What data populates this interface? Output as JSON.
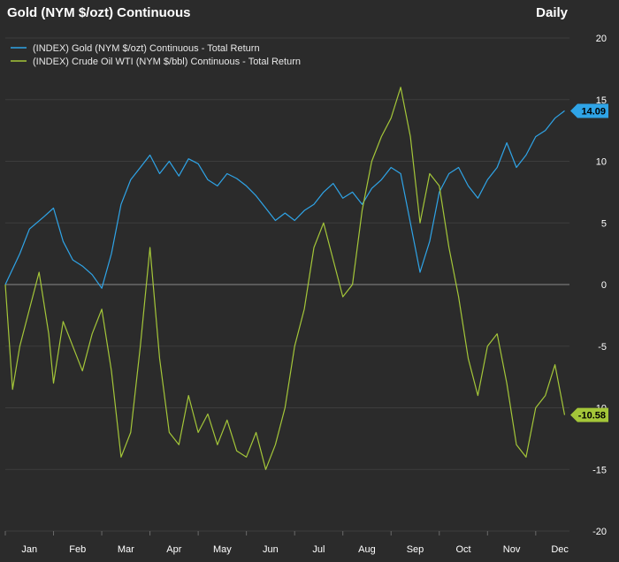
{
  "chart_data": {
    "type": "line",
    "title": "Gold (NYM $/ozt) Continuous",
    "period_label": "Daily",
    "xlabel": "",
    "ylabel": "",
    "ylim": [
      -20,
      20
    ],
    "y_ticks": [
      20,
      15,
      10,
      5,
      0,
      -5,
      -10,
      -15,
      -20
    ],
    "x_tick_labels": [
      "Jan",
      "Feb",
      "Mar",
      "Apr",
      "May",
      "Jun",
      "Jul",
      "Aug",
      "Sep",
      "Oct",
      "Nov",
      "Dec"
    ],
    "grid": "horizontal",
    "legend_position": "top-left",
    "zero_line": true,
    "series": [
      {
        "name": "(INDEX) Gold (NYM $/ozt) Continuous - Total Return",
        "color": "#2fa4e7",
        "last_value": "14.09",
        "x": [
          0.0,
          0.3,
          0.5,
          0.8,
          1.0,
          1.2,
          1.4,
          1.6,
          1.8,
          2.0,
          2.2,
          2.4,
          2.6,
          2.8,
          3.0,
          3.2,
          3.4,
          3.6,
          3.8,
          4.0,
          4.2,
          4.4,
          4.6,
          4.8,
          5.0,
          5.2,
          5.4,
          5.6,
          5.8,
          6.0,
          6.2,
          6.4,
          6.6,
          6.8,
          7.0,
          7.2,
          7.4,
          7.6,
          7.8,
          8.0,
          8.2,
          8.4,
          8.6,
          8.8,
          9.0,
          9.2,
          9.4,
          9.6,
          9.8,
          10.0,
          10.2,
          10.4,
          10.6,
          10.8,
          11.0,
          11.2,
          11.4,
          11.6
        ],
        "values": [
          0.0,
          2.5,
          4.5,
          5.5,
          6.2,
          3.5,
          2.0,
          1.5,
          0.8,
          -0.3,
          2.5,
          6.5,
          8.5,
          9.5,
          10.5,
          9.0,
          10.0,
          8.8,
          10.2,
          9.8,
          8.5,
          8.0,
          9.0,
          8.6,
          8.0,
          7.2,
          6.2,
          5.2,
          5.8,
          5.2,
          6.0,
          6.5,
          7.5,
          8.2,
          7.0,
          7.5,
          6.5,
          7.8,
          8.5,
          9.5,
          9.0,
          5.0,
          1.0,
          3.5,
          7.5,
          9.0,
          9.5,
          8.0,
          7.0,
          8.5,
          9.5,
          11.5,
          9.5,
          10.5,
          12.0,
          12.5,
          13.5,
          14.09
        ]
      },
      {
        "name": "(INDEX) Crude Oil WTI (NYM $/bbl) Continuous - Total Return",
        "color": "#a4c639",
        "last_value": "-10.58",
        "x": [
          0.0,
          0.15,
          0.3,
          0.5,
          0.7,
          0.9,
          1.0,
          1.2,
          1.4,
          1.6,
          1.8,
          2.0,
          2.2,
          2.4,
          2.6,
          2.8,
          3.0,
          3.2,
          3.4,
          3.6,
          3.8,
          4.0,
          4.2,
          4.4,
          4.6,
          4.8,
          5.0,
          5.2,
          5.4,
          5.6,
          5.8,
          6.0,
          6.2,
          6.4,
          6.6,
          6.8,
          7.0,
          7.2,
          7.4,
          7.6,
          7.8,
          8.0,
          8.2,
          8.4,
          8.6,
          8.8,
          9.0,
          9.2,
          9.4,
          9.6,
          9.8,
          10.0,
          10.2,
          10.4,
          10.6,
          10.8,
          11.0,
          11.2,
          11.4,
          11.6
        ],
        "values": [
          0.0,
          -8.5,
          -5.0,
          -2.0,
          1.0,
          -4.0,
          -8.0,
          -3.0,
          -5.0,
          -7.0,
          -4.0,
          -2.0,
          -7.0,
          -14.0,
          -12.0,
          -5.0,
          3.0,
          -6.0,
          -12.0,
          -13.0,
          -9.0,
          -12.0,
          -10.5,
          -13.0,
          -11.0,
          -13.5,
          -14.0,
          -12.0,
          -15.0,
          -13.0,
          -10.0,
          -5.0,
          -2.0,
          3.0,
          5.0,
          2.0,
          -1.0,
          0.0,
          6.0,
          10.0,
          12.0,
          13.5,
          16.0,
          12.0,
          5.0,
          9.0,
          8.0,
          3.0,
          -1.0,
          -6.0,
          -9.0,
          -5.0,
          -4.0,
          -8.0,
          -13.0,
          -14.0,
          -10.0,
          -9.0,
          -6.5,
          -10.58
        ]
      }
    ]
  }
}
